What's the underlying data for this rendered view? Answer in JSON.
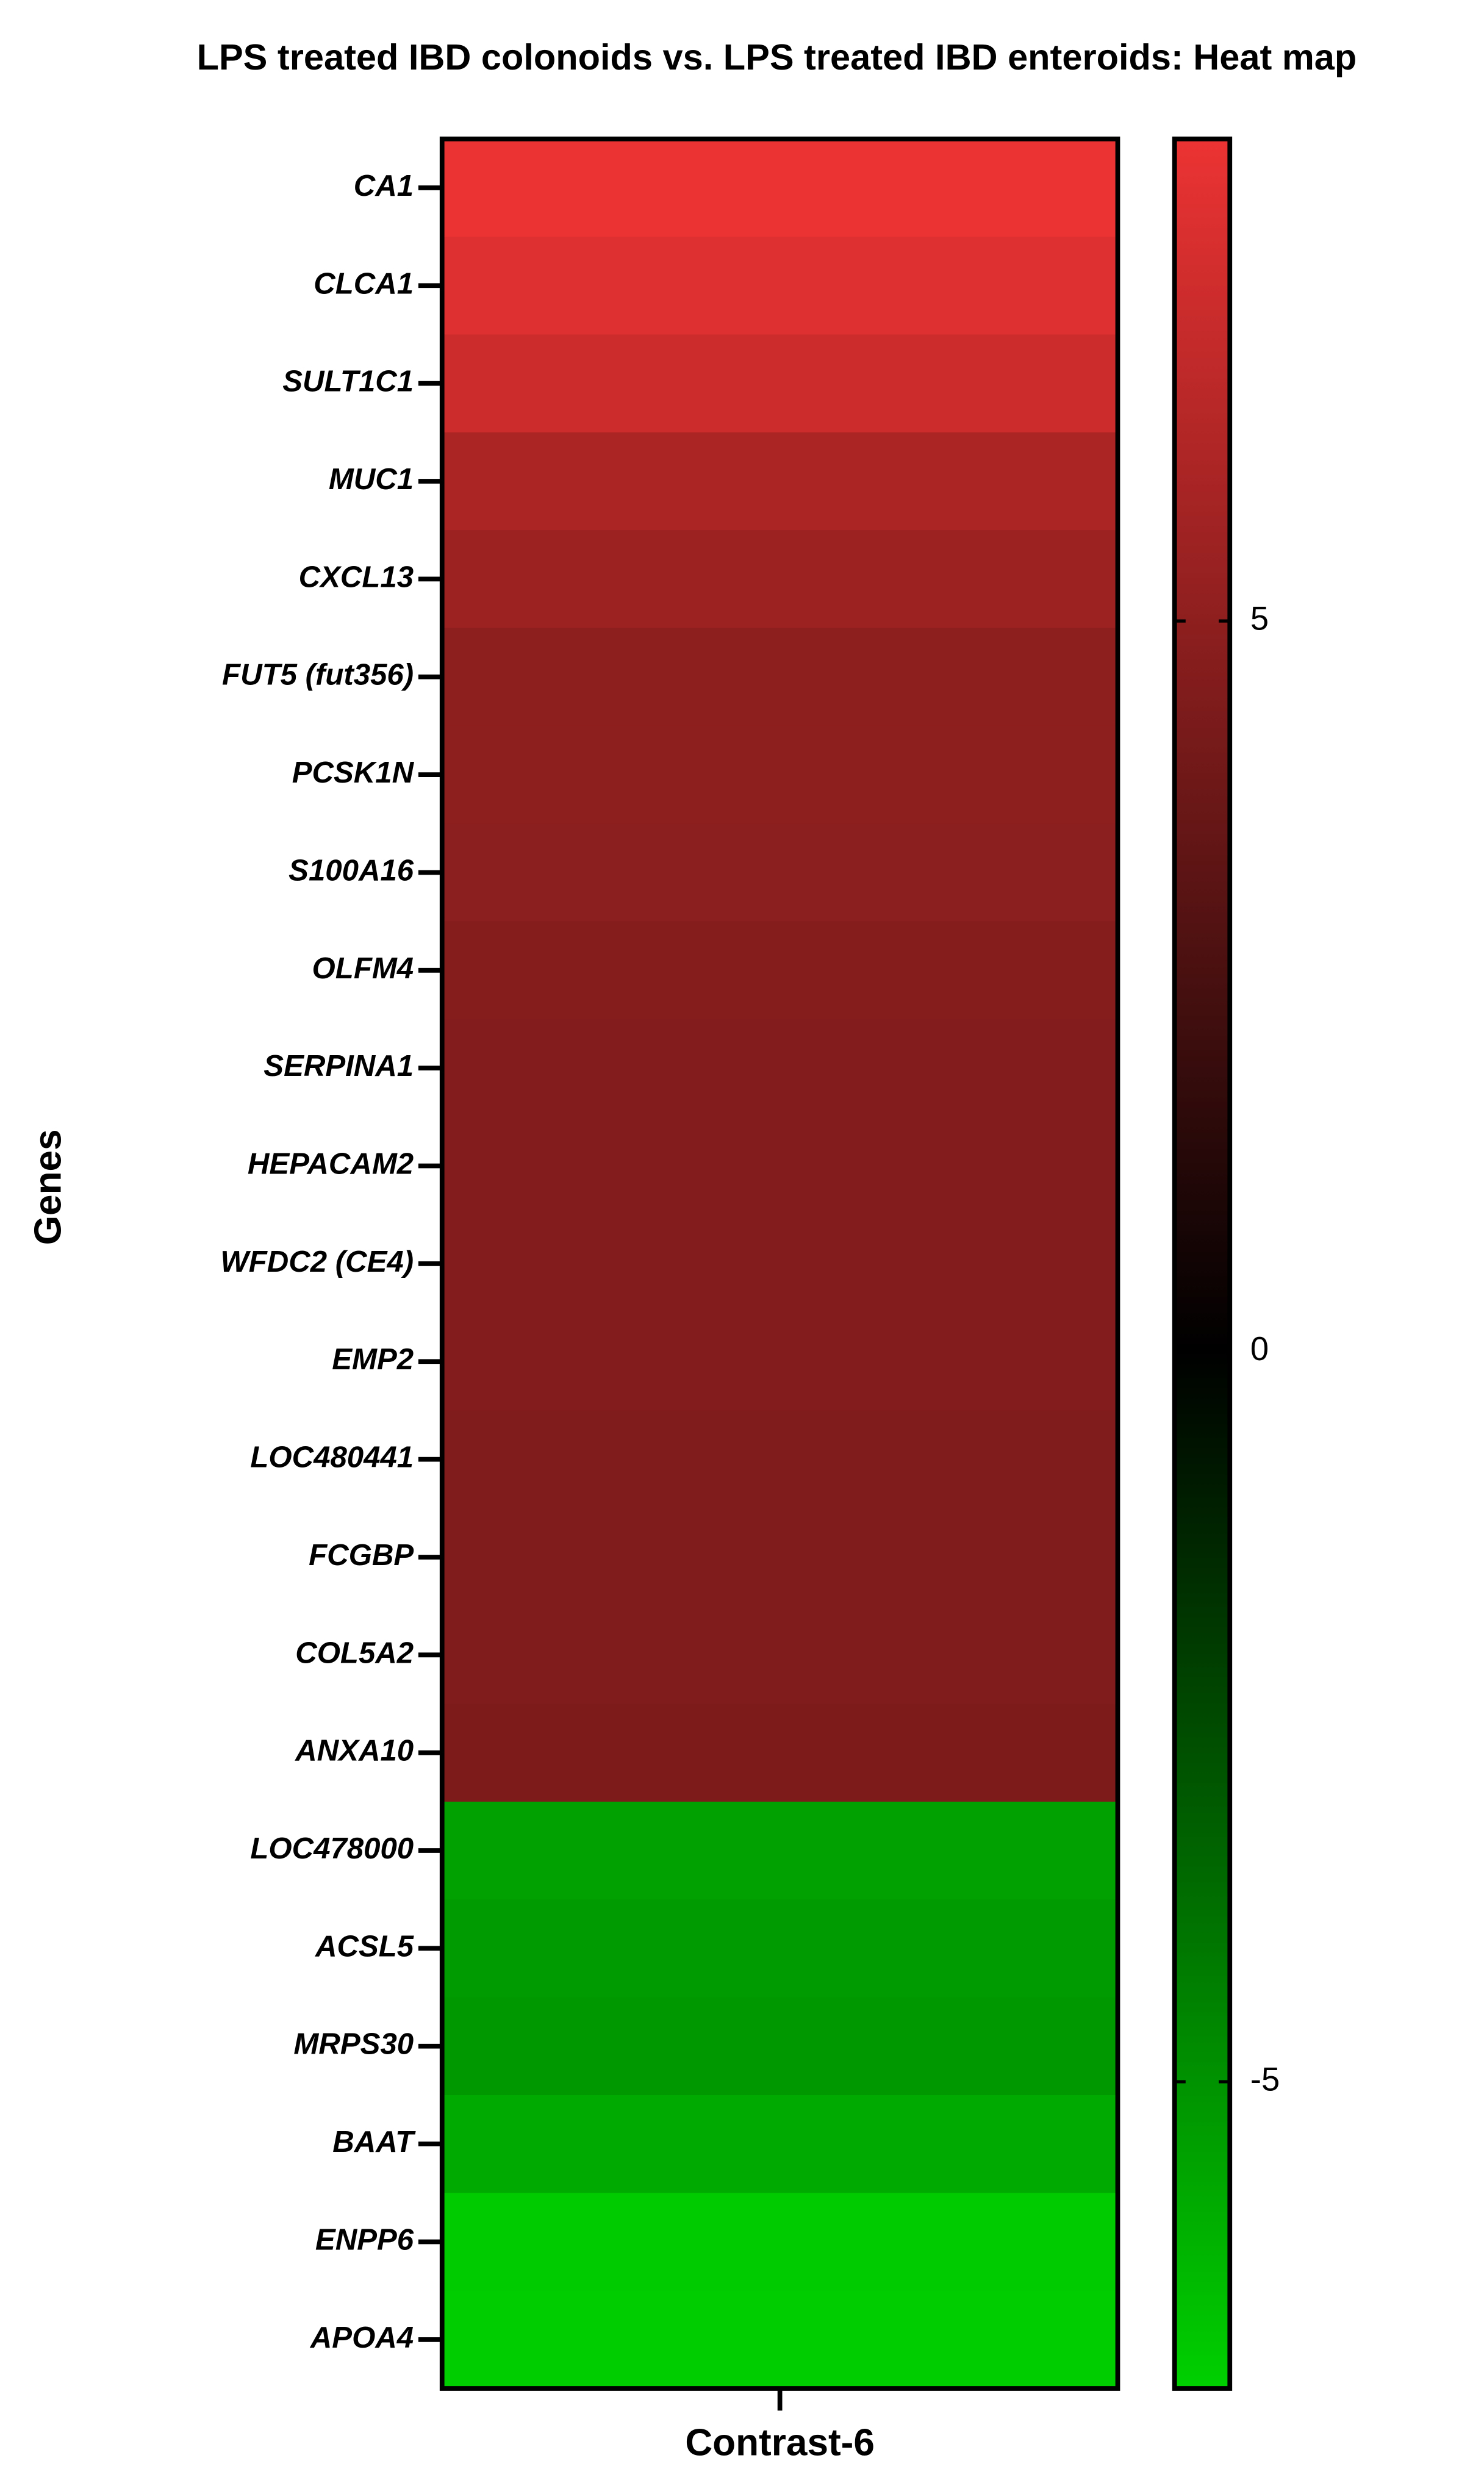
{
  "chart_data": {
    "type": "heatmap",
    "title": "LPS treated IBD colonoids vs. LPS treated IBD enteroids: Heat map",
    "ylabel": "Genes",
    "x_categories": [
      "Contrast-6"
    ],
    "y_categories": [
      "CA1",
      "CLCA1",
      "SULT1C1",
      "MUC1",
      "CXCL13",
      "FUT5 (fut356)",
      "PCSK1N",
      "S100A16",
      "OLFM4",
      "SERPINA1",
      "HEPACAM2",
      "WFDC2 (CE4)",
      "EMP2",
      "LOC480441",
      "FCGBP",
      "COL5A2",
      "ANXA10",
      "LOC478000",
      "ACSL5",
      "MRPS30",
      "BAAT",
      "ENPP6",
      "APOA4"
    ],
    "values": [
      [
        8.3
      ],
      [
        7.8
      ],
      [
        7.2
      ],
      [
        6.0
      ],
      [
        5.5
      ],
      [
        5.0
      ],
      [
        5.0
      ],
      [
        4.9
      ],
      [
        4.7
      ],
      [
        4.6
      ],
      [
        4.6
      ],
      [
        4.6
      ],
      [
        4.6
      ],
      [
        4.5
      ],
      [
        4.5
      ],
      [
        4.5
      ],
      [
        4.4
      ],
      [
        -5.5
      ],
      [
        -5.3
      ],
      [
        -5.2
      ],
      [
        -5.8
      ],
      [
        -6.9
      ],
      [
        -7.0
      ]
    ],
    "zlim": [
      -7.1,
      8.3
    ],
    "zticks": [
      -5,
      0,
      5
    ],
    "colors": [
      "#00d000",
      "#000000",
      "#ec3333"
    ]
  }
}
